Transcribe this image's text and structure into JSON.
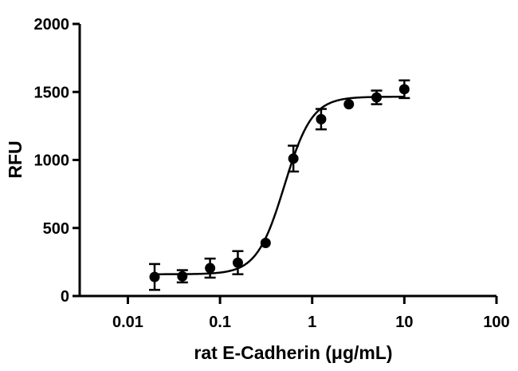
{
  "chart_data": {
    "type": "scatter",
    "title": "",
    "xlabel": "rat E-Cadherin (μg/mL)",
    "ylabel": "RFU",
    "x_scale": "log",
    "xlim": [
      0.003,
      100
    ],
    "ylim": [
      0,
      2000
    ],
    "x_ticks": [
      0.01,
      0.1,
      1,
      10,
      100
    ],
    "x_tick_labels": [
      "0.01",
      "0.1",
      "1",
      "10",
      "100"
    ],
    "y_ticks": [
      0,
      500,
      1000,
      1500,
      2000
    ],
    "y_tick_labels": [
      "0",
      "500",
      "1000",
      "1500",
      "2000"
    ],
    "grid": false,
    "points": [
      {
        "x": 0.0195,
        "y": 140,
        "err": 95
      },
      {
        "x": 0.039,
        "y": 145,
        "err": 45
      },
      {
        "x": 0.078,
        "y": 205,
        "err": 70
      },
      {
        "x": 0.156,
        "y": 245,
        "err": 85
      },
      {
        "x": 0.3125,
        "y": 390,
        "err": 0
      },
      {
        "x": 0.625,
        "y": 1010,
        "err": 95
      },
      {
        "x": 1.25,
        "y": 1300,
        "err": 75
      },
      {
        "x": 2.5,
        "y": 1410,
        "err": 0
      },
      {
        "x": 5,
        "y": 1460,
        "err": 50
      },
      {
        "x": 10,
        "y": 1520,
        "err": 65
      }
    ],
    "fit": {
      "model": "4PL",
      "bottom": 160,
      "top": 1465,
      "ec50": 0.5,
      "hill": 2.9
    },
    "colors": {
      "marker": "#000000",
      "line": "#000000",
      "axis": "#000000"
    }
  }
}
